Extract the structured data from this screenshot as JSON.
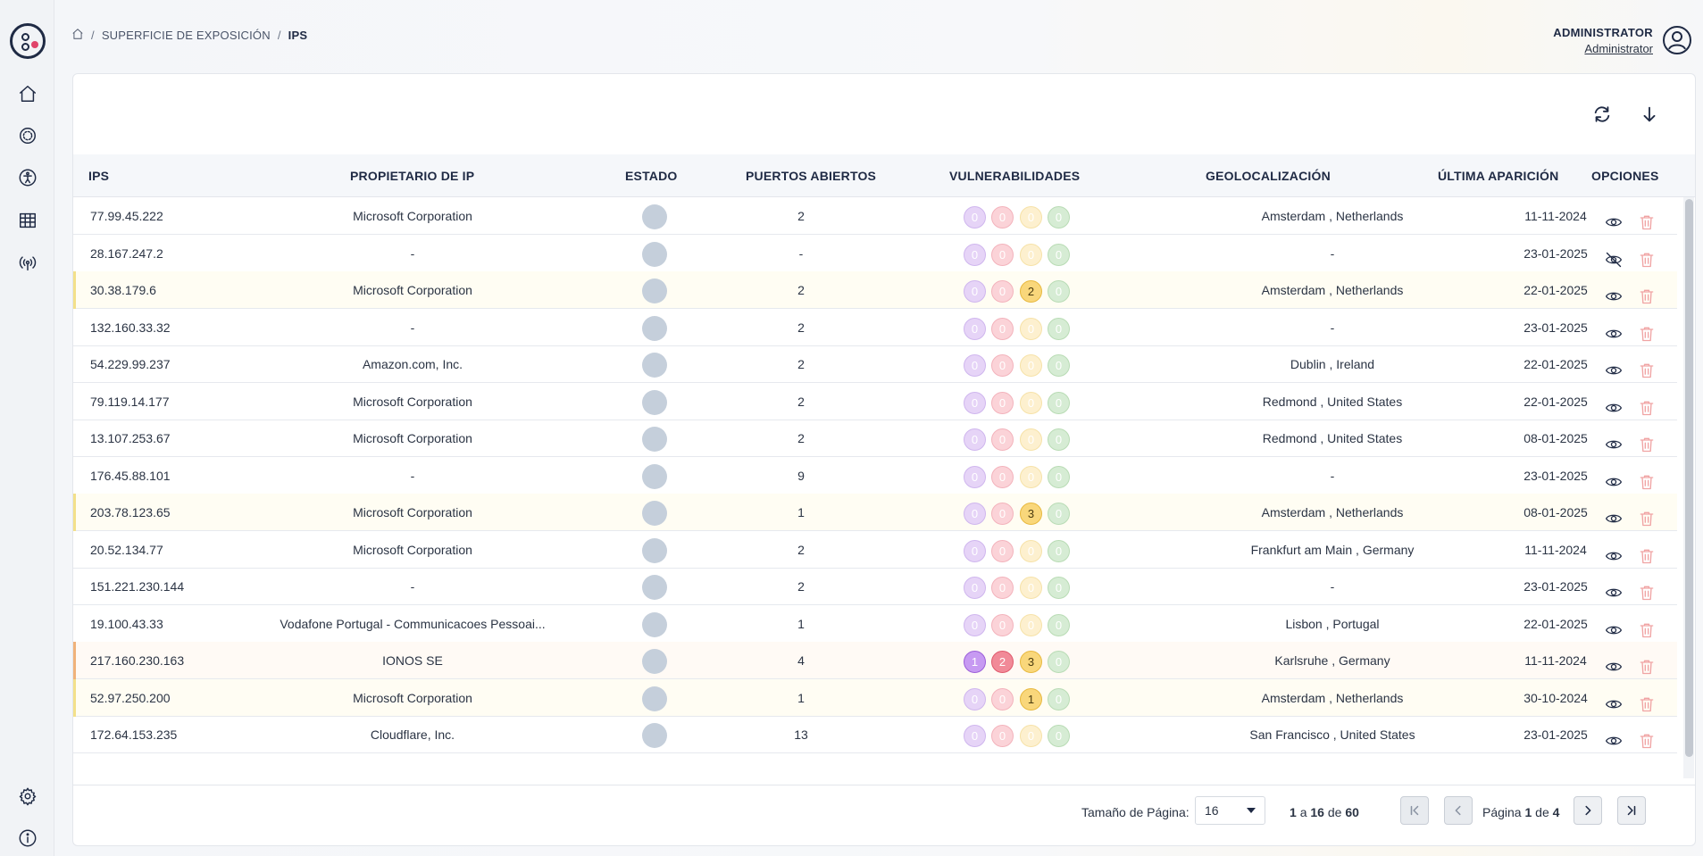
{
  "breadcrumb": {
    "items": [
      "SUPERFICIE DE EXPOSICIÓN",
      "IPS"
    ]
  },
  "user": {
    "name": "ADMINISTRATOR",
    "role": "Administrator"
  },
  "sidebar": {
    "items": [
      "home-icon",
      "radar-icon",
      "accessibility-icon",
      "table-icon",
      "broadcast-icon"
    ],
    "bottom": [
      "gear-icon",
      "info-icon"
    ]
  },
  "table": {
    "headers": {
      "ip": "IPS",
      "owner": "PROPIETARIO DE IP",
      "estado": "ESTADO",
      "ports": "PUERTOS ABIERTOS",
      "vuln": "VULNERABILIDADES",
      "geo": "GEOLOCALIZACIÓN",
      "date": "ÚLTIMA APARICIÓN",
      "options": "OPCIONES"
    },
    "rows": [
      {
        "ip": "77.99.45.222",
        "owner": "Microsoft Corporation",
        "ports": "2",
        "vuln": [
          "0",
          "0",
          "0",
          "0"
        ],
        "geo": "Amsterdam , Netherlands",
        "date": "11-11-2024",
        "hl": "",
        "hidden": false
      },
      {
        "ip": "28.167.247.2",
        "owner": "-",
        "ports": "-",
        "vuln": [
          "0",
          "0",
          "0",
          "0"
        ],
        "geo": "-",
        "date": "23-01-2025",
        "hl": "",
        "hidden": true
      },
      {
        "ip": "30.38.179.6",
        "owner": "Microsoft Corporation",
        "ports": "2",
        "vuln": [
          "0",
          "0",
          "2",
          "0"
        ],
        "geo": "Amsterdam , Netherlands",
        "date": "22-01-2025",
        "hl": "warn",
        "hidden": false
      },
      {
        "ip": "132.160.33.32",
        "owner": "-",
        "ports": "2",
        "vuln": [
          "0",
          "0",
          "0",
          "0"
        ],
        "geo": "-",
        "date": "23-01-2025",
        "hl": "",
        "hidden": false
      },
      {
        "ip": "54.229.99.237",
        "owner": "Amazon.com, Inc.",
        "ports": "2",
        "vuln": [
          "0",
          "0",
          "0",
          "0"
        ],
        "geo": "Dublin , Ireland",
        "date": "22-01-2025",
        "hl": "",
        "hidden": false
      },
      {
        "ip": "79.119.14.177",
        "owner": "Microsoft Corporation",
        "ports": "2",
        "vuln": [
          "0",
          "0",
          "0",
          "0"
        ],
        "geo": "Redmond , United States",
        "date": "22-01-2025",
        "hl": "",
        "hidden": false
      },
      {
        "ip": "13.107.253.67",
        "owner": "Microsoft Corporation",
        "ports": "2",
        "vuln": [
          "0",
          "0",
          "0",
          "0"
        ],
        "geo": "Redmond , United States",
        "date": "08-01-2025",
        "hl": "",
        "hidden": false
      },
      {
        "ip": "176.45.88.101",
        "owner": "-",
        "ports": "9",
        "vuln": [
          "0",
          "0",
          "0",
          "0"
        ],
        "geo": "-",
        "date": "23-01-2025",
        "hl": "",
        "hidden": false
      },
      {
        "ip": "203.78.123.65",
        "owner": "Microsoft Corporation",
        "ports": "1",
        "vuln": [
          "0",
          "0",
          "3",
          "0"
        ],
        "geo": "Amsterdam , Netherlands",
        "date": "08-01-2025",
        "hl": "warn",
        "hidden": false
      },
      {
        "ip": "20.52.134.77",
        "owner": "Microsoft Corporation",
        "ports": "2",
        "vuln": [
          "0",
          "0",
          "0",
          "0"
        ],
        "geo": "Frankfurt am Main , Germany",
        "date": "11-11-2024",
        "hl": "",
        "hidden": false
      },
      {
        "ip": "151.221.230.144",
        "owner": "-",
        "ports": "2",
        "vuln": [
          "0",
          "0",
          "0",
          "0"
        ],
        "geo": "-",
        "date": "23-01-2025",
        "hl": "",
        "hidden": false
      },
      {
        "ip": "19.100.43.33",
        "owner": "Vodafone Portugal - Communicacoes Pessoai...",
        "ports": "1",
        "vuln": [
          "0",
          "0",
          "0",
          "0"
        ],
        "geo": "Lisbon , Portugal",
        "date": "22-01-2025",
        "hl": "",
        "hidden": false
      },
      {
        "ip": "217.160.230.163",
        "owner": "IONOS SE",
        "ports": "4",
        "vuln": [
          "1",
          "2",
          "3",
          "0"
        ],
        "geo": "Karlsruhe , Germany",
        "date": "11-11-2024",
        "hl": "hi",
        "hidden": false
      },
      {
        "ip": "52.97.250.200",
        "owner": "Microsoft Corporation",
        "ports": "1",
        "vuln": [
          "0",
          "0",
          "1",
          "0"
        ],
        "geo": "Amsterdam , Netherlands",
        "date": "30-10-2024",
        "hl": "warn",
        "hidden": false
      },
      {
        "ip": "172.64.153.235",
        "owner": "Cloudflare, Inc.",
        "ports": "13",
        "vuln": [
          "0",
          "0",
          "0",
          "0"
        ],
        "geo": "San Francisco , United States",
        "date": "23-01-2025",
        "hl": "",
        "hidden": false
      }
    ]
  },
  "pagination": {
    "page_size_label": "Tamaño de Página:",
    "page_size": "16",
    "range_from": "1",
    "range_a": "a",
    "range_to": "16",
    "range_de": "de",
    "total": "60",
    "page_label": "Página",
    "page": "1",
    "page_de": "de",
    "pages": "4"
  }
}
